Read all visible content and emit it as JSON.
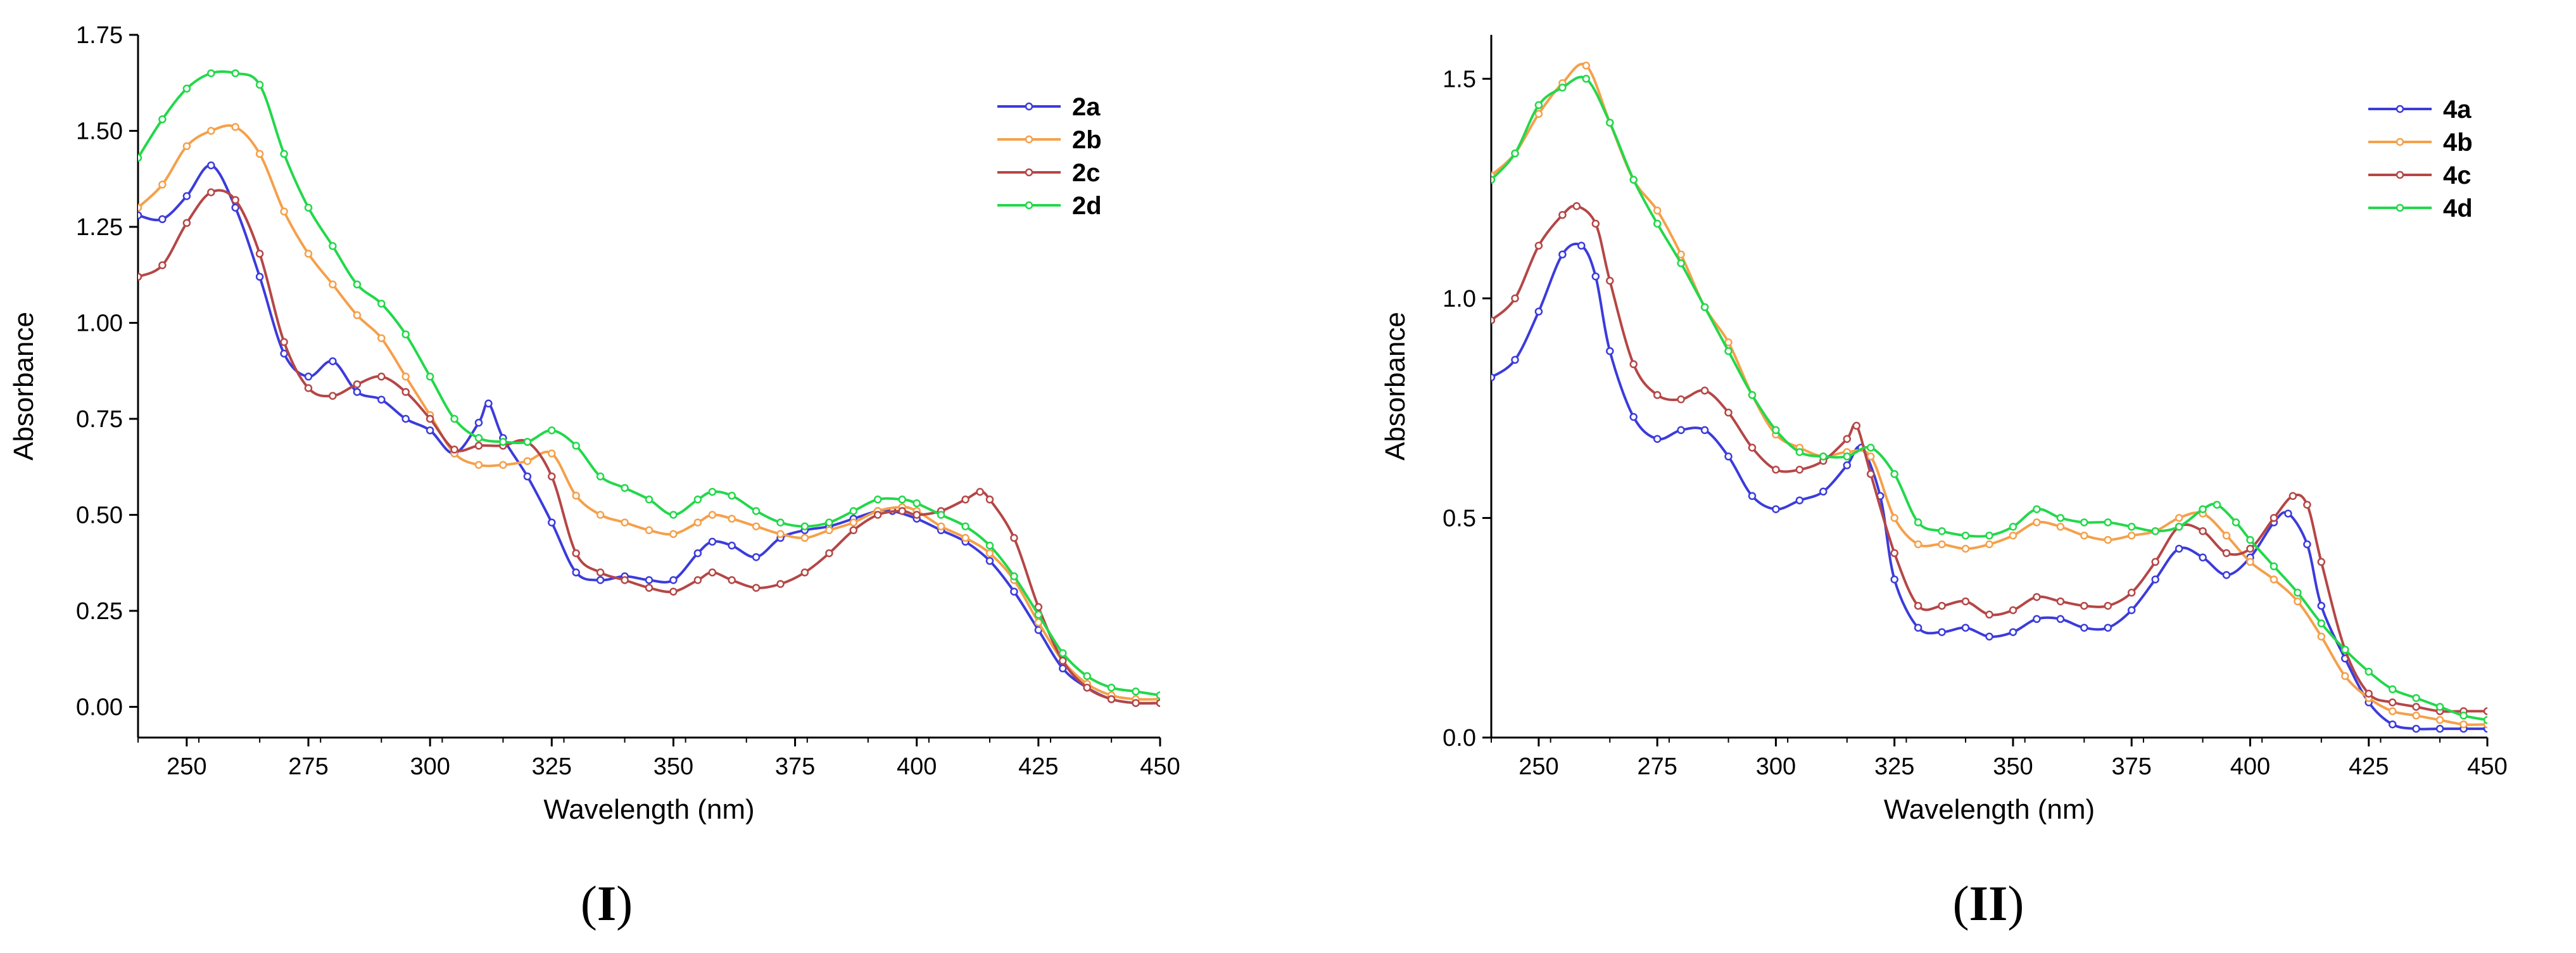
{
  "chart_data": [
    {
      "type": "line",
      "panel_label": "I",
      "xlabel": "Wavelength (nm)",
      "ylabel": "Absorbance",
      "xlim": [
        240,
        450
      ],
      "ylim": [
        -0.08,
        1.75
      ],
      "xticks": [
        250,
        275,
        300,
        325,
        350,
        375,
        400,
        425,
        450
      ],
      "yticks": [
        0.0,
        0.25,
        0.5,
        0.75,
        1.0,
        1.25,
        1.5,
        1.75
      ],
      "ytick_labels": [
        "0.00",
        "0.25",
        "0.50",
        "0.75",
        "1.00",
        "1.25",
        "1.50",
        "1.75"
      ],
      "legend_position": "top-right",
      "series": [
        {
          "name": "2a",
          "color": "#3b3bdc",
          "x": [
            240,
            245,
            250,
            255,
            260,
            265,
            270,
            275,
            280,
            285,
            290,
            295,
            300,
            305,
            310,
            312,
            315,
            320,
            325,
            330,
            335,
            340,
            345,
            350,
            355,
            358,
            362,
            367,
            372,
            377,
            382,
            387,
            392,
            395,
            400,
            405,
            410,
            415,
            420,
            425,
            430,
            435,
            440,
            445,
            450
          ],
          "y": [
            1.28,
            1.27,
            1.33,
            1.41,
            1.3,
            1.12,
            0.92,
            0.86,
            0.9,
            0.82,
            0.8,
            0.75,
            0.72,
            0.66,
            0.74,
            0.79,
            0.7,
            0.6,
            0.48,
            0.35,
            0.33,
            0.34,
            0.33,
            0.33,
            0.4,
            0.43,
            0.42,
            0.39,
            0.44,
            0.46,
            0.47,
            0.49,
            0.51,
            0.51,
            0.49,
            0.46,
            0.43,
            0.38,
            0.3,
            0.2,
            0.1,
            0.05,
            0.02,
            0.01,
            0.01
          ]
        },
        {
          "name": "2b",
          "color": "#f5a04a",
          "x": [
            240,
            245,
            250,
            255,
            260,
            265,
            270,
            275,
            280,
            285,
            290,
            295,
            300,
            305,
            310,
            315,
            320,
            325,
            330,
            335,
            340,
            345,
            350,
            355,
            358,
            362,
            367,
            372,
            377,
            382,
            387,
            392,
            397,
            400,
            405,
            410,
            415,
            420,
            425,
            430,
            435,
            440,
            445,
            450
          ],
          "y": [
            1.3,
            1.36,
            1.46,
            1.5,
            1.51,
            1.44,
            1.29,
            1.18,
            1.1,
            1.02,
            0.96,
            0.86,
            0.76,
            0.66,
            0.63,
            0.63,
            0.64,
            0.66,
            0.55,
            0.5,
            0.48,
            0.46,
            0.45,
            0.48,
            0.5,
            0.49,
            0.47,
            0.45,
            0.44,
            0.46,
            0.48,
            0.51,
            0.52,
            0.51,
            0.47,
            0.44,
            0.4,
            0.33,
            0.22,
            0.12,
            0.06,
            0.03,
            0.02,
            0.02
          ]
        },
        {
          "name": "2c",
          "color": "#b54646",
          "x": [
            240,
            245,
            250,
            255,
            260,
            265,
            270,
            275,
            280,
            285,
            290,
            295,
            300,
            305,
            310,
            315,
            320,
            325,
            330,
            335,
            340,
            345,
            350,
            355,
            358,
            362,
            367,
            372,
            377,
            382,
            387,
            392,
            397,
            400,
            405,
            410,
            413,
            415,
            420,
            425,
            430,
            435,
            440,
            445,
            450
          ],
          "y": [
            1.12,
            1.15,
            1.26,
            1.34,
            1.32,
            1.18,
            0.95,
            0.83,
            0.81,
            0.84,
            0.86,
            0.82,
            0.75,
            0.67,
            0.68,
            0.68,
            0.69,
            0.6,
            0.4,
            0.35,
            0.33,
            0.31,
            0.3,
            0.33,
            0.35,
            0.33,
            0.31,
            0.32,
            0.35,
            0.4,
            0.46,
            0.5,
            0.51,
            0.5,
            0.51,
            0.54,
            0.56,
            0.54,
            0.44,
            0.26,
            0.12,
            0.05,
            0.02,
            0.01,
            0.01
          ]
        },
        {
          "name": "2d",
          "color": "#22d84a",
          "x": [
            240,
            245,
            250,
            255,
            260,
            265,
            270,
            275,
            280,
            285,
            290,
            295,
            300,
            305,
            310,
            315,
            320,
            325,
            330,
            335,
            340,
            345,
            350,
            355,
            358,
            362,
            367,
            372,
            377,
            382,
            387,
            392,
            397,
            400,
            405,
            410,
            415,
            420,
            425,
            430,
            435,
            440,
            445,
            450
          ],
          "y": [
            1.43,
            1.53,
            1.61,
            1.65,
            1.65,
            1.62,
            1.44,
            1.3,
            1.2,
            1.1,
            1.05,
            0.97,
            0.86,
            0.75,
            0.7,
            0.69,
            0.69,
            0.72,
            0.68,
            0.6,
            0.57,
            0.54,
            0.5,
            0.54,
            0.56,
            0.55,
            0.51,
            0.48,
            0.47,
            0.48,
            0.51,
            0.54,
            0.54,
            0.53,
            0.5,
            0.47,
            0.42,
            0.34,
            0.24,
            0.14,
            0.08,
            0.05,
            0.04,
            0.03
          ]
        }
      ]
    },
    {
      "type": "line",
      "panel_label": "II",
      "xlabel": "Wavelength (nm)",
      "ylabel": "Absorbance",
      "xlim": [
        240,
        450
      ],
      "ylim": [
        0.0,
        1.6
      ],
      "xticks": [
        250,
        275,
        300,
        325,
        350,
        375,
        400,
        425,
        450
      ],
      "yticks": [
        0.0,
        0.5,
        1.0,
        1.5
      ],
      "ytick_labels": [
        "0.0",
        "0.5",
        "1.0",
        "1.5"
      ],
      "legend_position": "top-right",
      "series": [
        {
          "name": "4a",
          "color": "#3b3bdc",
          "x": [
            240,
            245,
            250,
            255,
            259,
            262,
            265,
            270,
            275,
            280,
            285,
            290,
            295,
            300,
            305,
            310,
            315,
            318,
            322,
            325,
            330,
            335,
            340,
            345,
            350,
            355,
            360,
            365,
            370,
            375,
            380,
            385,
            390,
            395,
            400,
            405,
            408,
            412,
            415,
            420,
            425,
            430,
            435,
            440,
            445,
            450
          ],
          "y": [
            0.82,
            0.86,
            0.97,
            1.1,
            1.12,
            1.05,
            0.88,
            0.73,
            0.68,
            0.7,
            0.7,
            0.64,
            0.55,
            0.52,
            0.54,
            0.56,
            0.62,
            0.66,
            0.55,
            0.36,
            0.25,
            0.24,
            0.25,
            0.23,
            0.24,
            0.27,
            0.27,
            0.25,
            0.25,
            0.29,
            0.36,
            0.43,
            0.41,
            0.37,
            0.41,
            0.49,
            0.51,
            0.44,
            0.3,
            0.18,
            0.08,
            0.03,
            0.02,
            0.02,
            0.02,
            0.02
          ]
        },
        {
          "name": "4b",
          "color": "#f5a04a",
          "x": [
            240,
            245,
            250,
            255,
            260,
            265,
            270,
            275,
            280,
            285,
            290,
            295,
            300,
            305,
            310,
            315,
            320,
            325,
            330,
            335,
            340,
            345,
            350,
            355,
            360,
            365,
            370,
            375,
            380,
            385,
            390,
            395,
            400,
            405,
            410,
            415,
            420,
            425,
            430,
            435,
            440,
            445,
            450
          ],
          "y": [
            1.28,
            1.33,
            1.42,
            1.49,
            1.53,
            1.4,
            1.27,
            1.2,
            1.1,
            0.98,
            0.9,
            0.78,
            0.69,
            0.66,
            0.64,
            0.65,
            0.64,
            0.5,
            0.44,
            0.44,
            0.43,
            0.44,
            0.46,
            0.49,
            0.48,
            0.46,
            0.45,
            0.46,
            0.47,
            0.5,
            0.51,
            0.46,
            0.4,
            0.36,
            0.31,
            0.23,
            0.14,
            0.09,
            0.06,
            0.05,
            0.04,
            0.03,
            0.03
          ]
        },
        {
          "name": "4c",
          "color": "#b54646",
          "x": [
            240,
            245,
            250,
            255,
            258,
            262,
            265,
            270,
            275,
            280,
            285,
            290,
            295,
            300,
            305,
            310,
            315,
            317,
            320,
            325,
            330,
            335,
            340,
            345,
            350,
            355,
            360,
            365,
            370,
            375,
            380,
            385,
            390,
            395,
            400,
            405,
            409,
            412,
            415,
            420,
            425,
            430,
            435,
            440,
            445,
            450
          ],
          "y": [
            0.95,
            1.0,
            1.12,
            1.19,
            1.21,
            1.17,
            1.04,
            0.85,
            0.78,
            0.77,
            0.79,
            0.74,
            0.66,
            0.61,
            0.61,
            0.63,
            0.68,
            0.71,
            0.6,
            0.42,
            0.3,
            0.3,
            0.31,
            0.28,
            0.29,
            0.32,
            0.31,
            0.3,
            0.3,
            0.33,
            0.4,
            0.48,
            0.47,
            0.42,
            0.43,
            0.5,
            0.55,
            0.53,
            0.4,
            0.2,
            0.1,
            0.08,
            0.07,
            0.06,
            0.06,
            0.06
          ]
        },
        {
          "name": "4d",
          "color": "#22d84a",
          "x": [
            240,
            245,
            250,
            255,
            260,
            265,
            270,
            275,
            280,
            285,
            290,
            295,
            300,
            305,
            310,
            315,
            320,
            325,
            330,
            335,
            340,
            345,
            350,
            355,
            360,
            365,
            370,
            375,
            380,
            385,
            390,
            393,
            397,
            400,
            405,
            410,
            415,
            420,
            425,
            430,
            435,
            440,
            445,
            450
          ],
          "y": [
            1.27,
            1.33,
            1.44,
            1.48,
            1.5,
            1.4,
            1.27,
            1.17,
            1.08,
            0.98,
            0.88,
            0.78,
            0.7,
            0.65,
            0.64,
            0.64,
            0.66,
            0.6,
            0.49,
            0.47,
            0.46,
            0.46,
            0.48,
            0.52,
            0.5,
            0.49,
            0.49,
            0.48,
            0.47,
            0.48,
            0.52,
            0.53,
            0.49,
            0.45,
            0.39,
            0.33,
            0.26,
            0.2,
            0.15,
            0.11,
            0.09,
            0.07,
            0.05,
            0.04
          ]
        }
      ]
    }
  ]
}
